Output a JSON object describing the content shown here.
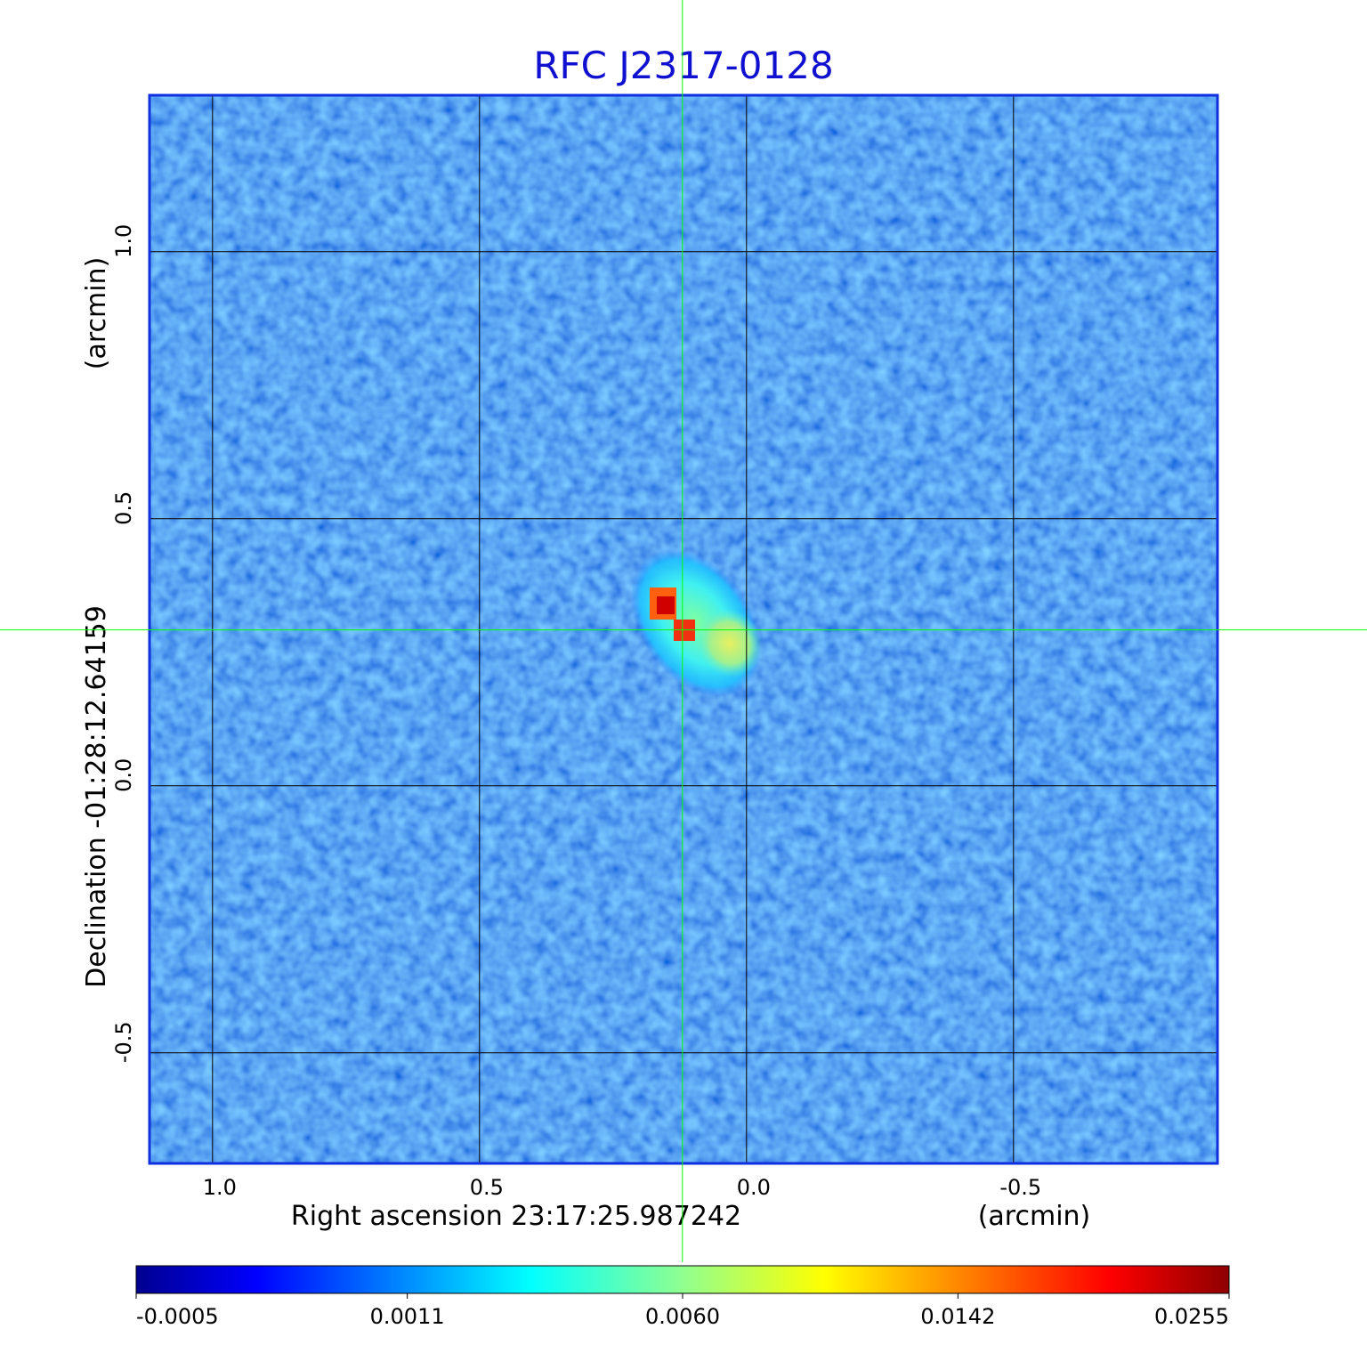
{
  "chart_data": {
    "type": "image",
    "title": "RFC J2317-0128",
    "x_label": "Right ascension  23:17:25.987242",
    "x_unit": "(arcmin)",
    "y_label": "Declination  -01:28:12.64159",
    "y_unit": "(arcmin)",
    "xlim": [
      1.118,
      -0.882
    ],
    "ylim": [
      -0.707,
      1.293
    ],
    "xticks": [
      {
        "value": 1.0,
        "label": "1.0"
      },
      {
        "value": 0.5,
        "label": "0.5"
      },
      {
        "value": 0.0,
        "label": "0.0"
      },
      {
        "value": -0.5,
        "label": "-0.5"
      }
    ],
    "yticks": [
      {
        "value": -0.5,
        "label": "-0.5"
      },
      {
        "value": 0.0,
        "label": "0.0"
      },
      {
        "value": 0.5,
        "label": "0.5"
      },
      {
        "value": 1.0,
        "label": "1.0"
      }
    ],
    "grid": true,
    "marker": {
      "x": 0.12,
      "y": 0.292,
      "color": "#00ff00"
    },
    "colorbar": {
      "scale": "sqrt",
      "clim": [
        -0.0005,
        0.0255
      ],
      "ticks": [
        {
          "value": -0.0005,
          "label": "-0.0005"
        },
        {
          "value": 0.0011,
          "label": "0.0011"
        },
        {
          "value": 0.006,
          "label": "0.0060"
        },
        {
          "value": 0.0142,
          "label": "0.0142"
        },
        {
          "value": 0.0255,
          "label": "0.0255"
        }
      ]
    }
  }
}
